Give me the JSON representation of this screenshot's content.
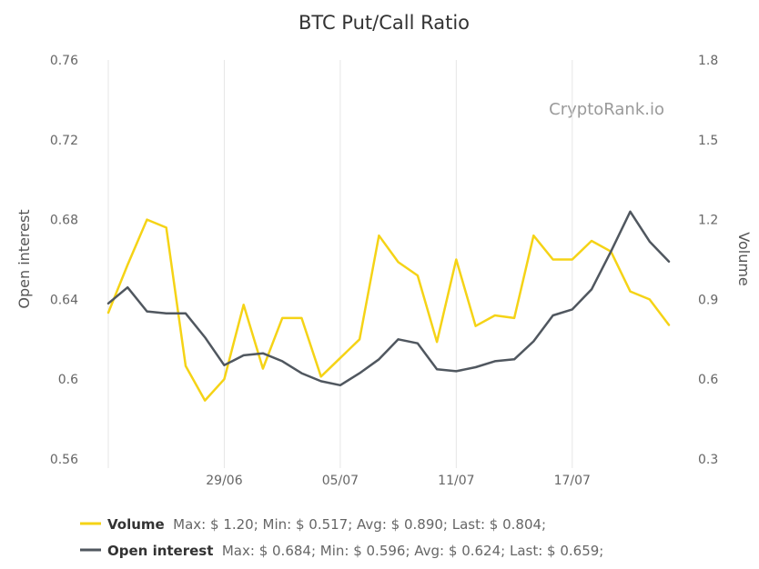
{
  "chart_data": {
    "type": "line",
    "title": "BTC Put/Call Ratio",
    "watermark": "CryptoRank.io",
    "x_ticks": [
      "29/06",
      "05/07",
      "11/07",
      "17/07"
    ],
    "x": [
      "23/06",
      "24/06",
      "25/06",
      "26/06",
      "27/06",
      "28/06",
      "29/06",
      "30/06",
      "01/07",
      "02/07",
      "03/07",
      "04/07",
      "05/07",
      "06/07",
      "07/07",
      "08/07",
      "09/07",
      "10/07",
      "11/07",
      "12/07",
      "13/07",
      "14/07",
      "15/07",
      "16/07",
      "17/07",
      "18/07",
      "19/07",
      "20/07",
      "21/07",
      "22/07"
    ],
    "y_left": {
      "title": "Open interest",
      "range": [
        0.56,
        0.76
      ],
      "ticks": [
        "0.76",
        "0.72",
        "0.68",
        "0.64",
        "0.6",
        "0.56"
      ]
    },
    "y_right": {
      "title": "Volume",
      "range": [
        0.3,
        1.8
      ],
      "ticks": [
        "1.8",
        "1.5",
        "1.2",
        "0.9",
        "0.6",
        "0.3"
      ]
    },
    "grid": "vertical",
    "legend_position": "bottom-left",
    "series": [
      {
        "name": "Volume",
        "axis": "right",
        "color": "#f5d316",
        "values": [
          0.85,
          1.03,
          1.2,
          1.17,
          0.65,
          0.52,
          0.6,
          0.88,
          0.64,
          0.83,
          0.83,
          0.61,
          0.68,
          0.75,
          1.14,
          1.04,
          0.99,
          0.74,
          1.05,
          0.8,
          0.84,
          0.83,
          1.14,
          1.05,
          1.05,
          1.12,
          1.08,
          0.93,
          0.9,
          0.804
        ],
        "stats": "Max: $ 1.20; Min: $ 0.517; Avg: $ 0.890; Last: $ 0.804;"
      },
      {
        "name": "Open interest",
        "axis": "left",
        "color": "#50575f",
        "values": [
          0.638,
          0.646,
          0.634,
          0.633,
          0.633,
          0.621,
          0.607,
          0.612,
          0.613,
          0.609,
          0.603,
          0.599,
          0.597,
          0.603,
          0.61,
          0.62,
          0.618,
          0.605,
          0.604,
          0.606,
          0.609,
          0.61,
          0.619,
          0.632,
          0.635,
          0.645,
          0.664,
          0.684,
          0.669,
          0.659
        ],
        "stats": "Max: $ 0.684; Min: $ 0.596; Avg: $ 0.624; Last: $ 0.659;"
      }
    ]
  }
}
